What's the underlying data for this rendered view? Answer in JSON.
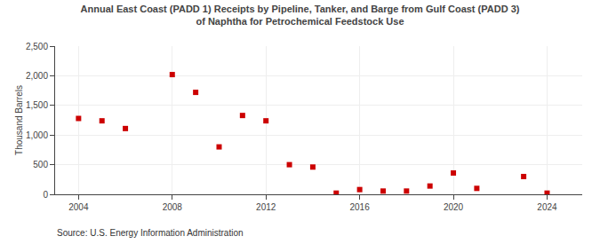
{
  "chart_data": {
    "type": "scatter",
    "title": "Annual East Coast (PADD 1) Receipts by Pipeline, Tanker, and Barge from Gulf Coast (PADD 3)\nof Naphtha for Petrochemical Feedstock Use",
    "ylabel": "Thousand Barrels",
    "annotations": [
      "Source: U.S. Energy Information Administration"
    ],
    "x": [
      2004,
      2005,
      2006,
      2008,
      2009,
      2010,
      2011,
      2012,
      2013,
      2014,
      2015,
      2016,
      2017,
      2018,
      2019,
      2020,
      2021,
      2023,
      2024
    ],
    "values": [
      1280,
      1240,
      1110,
      2020,
      1720,
      800,
      1330,
      1240,
      500,
      460,
      20,
      80,
      55,
      55,
      140,
      360,
      100,
      300,
      20
    ],
    "color": "#cc0000",
    "marker": "square",
    "xlim": [
      2003.0,
      2025.5
    ],
    "xticks": [
      2004,
      2008,
      2012,
      2016,
      2020,
      2024
    ],
    "ylim": [
      0,
      2500
    ],
    "yticks": [
      0,
      500,
      {
        "value": 1000,
        "label": "1,000"
      },
      {
        "value": 1500,
        "label": "1,500"
      },
      {
        "value": 2000,
        "label": "2,000"
      },
      {
        "value": 2500,
        "label": "2,500"
      }
    ],
    "grid": true
  }
}
